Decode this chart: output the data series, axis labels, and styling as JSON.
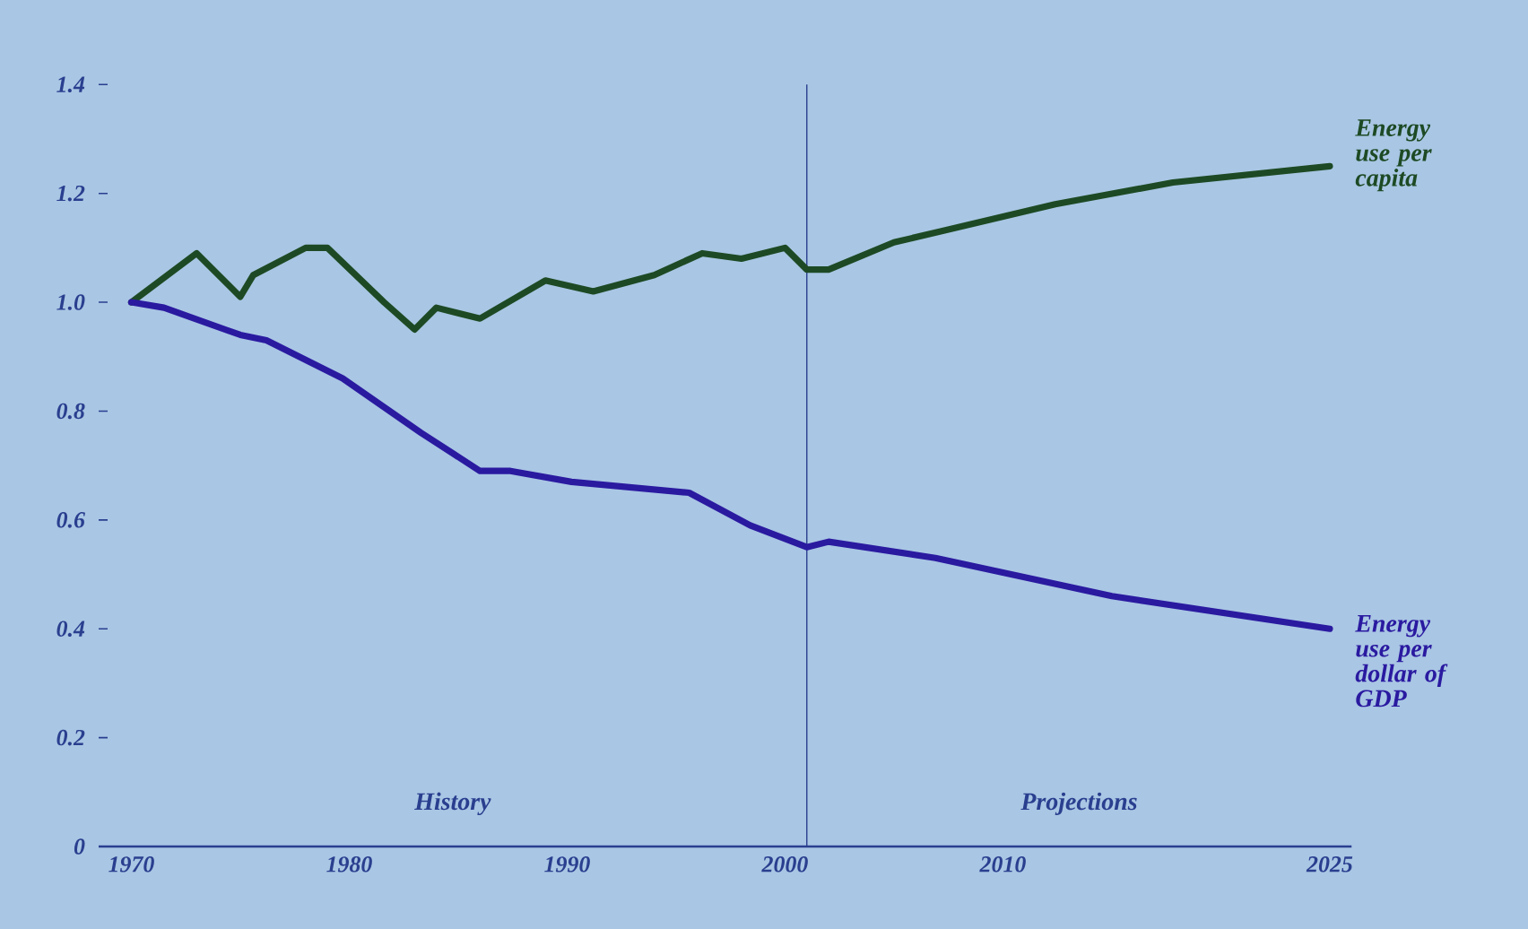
{
  "chart_data": {
    "type": "line",
    "xlim": [
      1968.5,
      2026
    ],
    "xticks": [
      1970,
      1980,
      1990,
      2000,
      2010,
      2025
    ],
    "ylim": [
      0,
      1.4
    ],
    "yticks": [
      0,
      0.2,
      0.4,
      0.6,
      0.8,
      {
        "value": 1.0,
        "label": "1.0"
      },
      1.2,
      1.4
    ],
    "grid": false,
    "legend": false,
    "series": [
      {
        "name": "Energy use per capita",
        "color": "#1d4a24",
        "x": [
          1970,
          1973,
          1975,
          1975.6,
          1978,
          1979,
          1981.6,
          1983,
          1984,
          1986,
          1989,
          1991.2,
          1994,
          1996.2,
          1998,
          2000,
          2001,
          2002,
          2005,
          2012.4,
          2017.8,
          2025
        ],
        "values": [
          1.0,
          1.09,
          1.01,
          1.05,
          1.1,
          1.1,
          1.0,
          0.95,
          0.99,
          0.97,
          1.04,
          1.02,
          1.05,
          1.09,
          1.08,
          1.1,
          1.06,
          1.06,
          1.11,
          1.18,
          1.22,
          1.25
        ]
      },
      {
        "name": "Energy use per dollar of GDP",
        "color": "#2a1aa0",
        "x": [
          1970,
          1971.5,
          1975,
          1976.2,
          1979.7,
          1983.3,
          1986,
          1987.4,
          1990.2,
          1995.6,
          1998.4,
          2001,
          2002,
          2006.9,
          2015,
          2025
        ],
        "values": [
          1.0,
          0.99,
          0.94,
          0.93,
          0.86,
          0.76,
          0.69,
          0.69,
          0.67,
          0.65,
          0.59,
          0.55,
          0.56,
          0.53,
          0.46,
          0.4
        ]
      }
    ],
    "ref_lines": [
      {
        "axis": "x",
        "value": 2001,
        "color": "#2a3f8f"
      }
    ],
    "annotations": [
      "History",
      "Projections"
    ]
  }
}
